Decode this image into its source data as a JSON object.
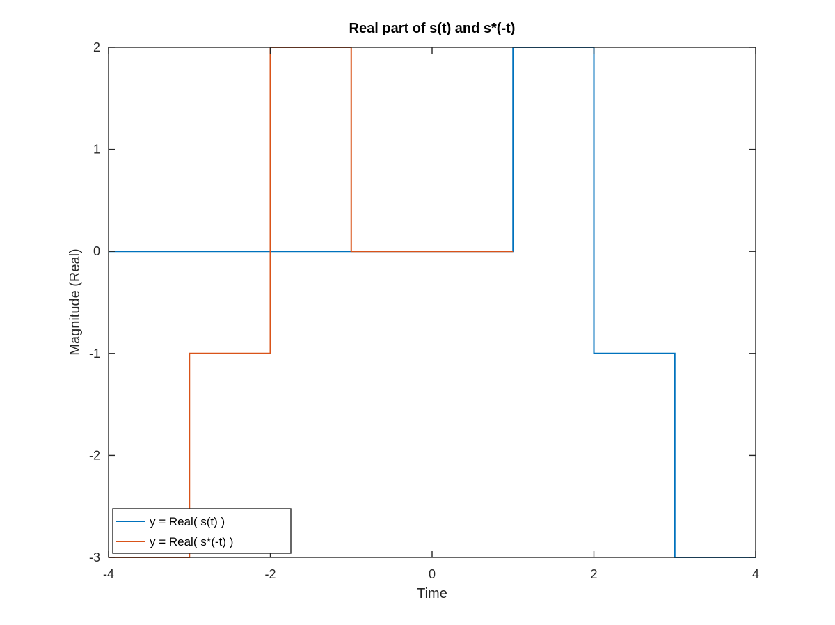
{
  "chart_data": {
    "type": "line",
    "title": "Real part of s(t) and s*(-t)",
    "xlabel": "Time",
    "ylabel": "Magnitude (Real)",
    "xlim": [
      -4,
      4
    ],
    "ylim": [
      -3,
      2
    ],
    "xticks": [
      -4,
      -2,
      0,
      2,
      4
    ],
    "yticks": [
      -3,
      -2,
      -1,
      0,
      1,
      2
    ],
    "xtick_labels": [
      "-4",
      "-2",
      "0",
      "2",
      "4"
    ],
    "ytick_labels": [
      "-3",
      "-2",
      "-1",
      "0",
      "1",
      "2"
    ],
    "grid": false,
    "box": true,
    "legend_location": "bottom-left",
    "series": [
      {
        "name": "y = Real( s(t) )",
        "color": "#0072BD",
        "x": [
          -4,
          1,
          1,
          2,
          2,
          3,
          3,
          4
        ],
        "y": [
          0,
          0,
          2,
          2,
          -1,
          -1,
          -3,
          -3
        ]
      },
      {
        "name": "y = Real( s*(-t) )",
        "color": "#D95319",
        "x": [
          -4,
          -3,
          -3,
          -2,
          -2,
          -1,
          -1,
          1
        ],
        "y": [
          -3,
          -3,
          -1,
          -1,
          2,
          2,
          0,
          0
        ]
      }
    ]
  }
}
